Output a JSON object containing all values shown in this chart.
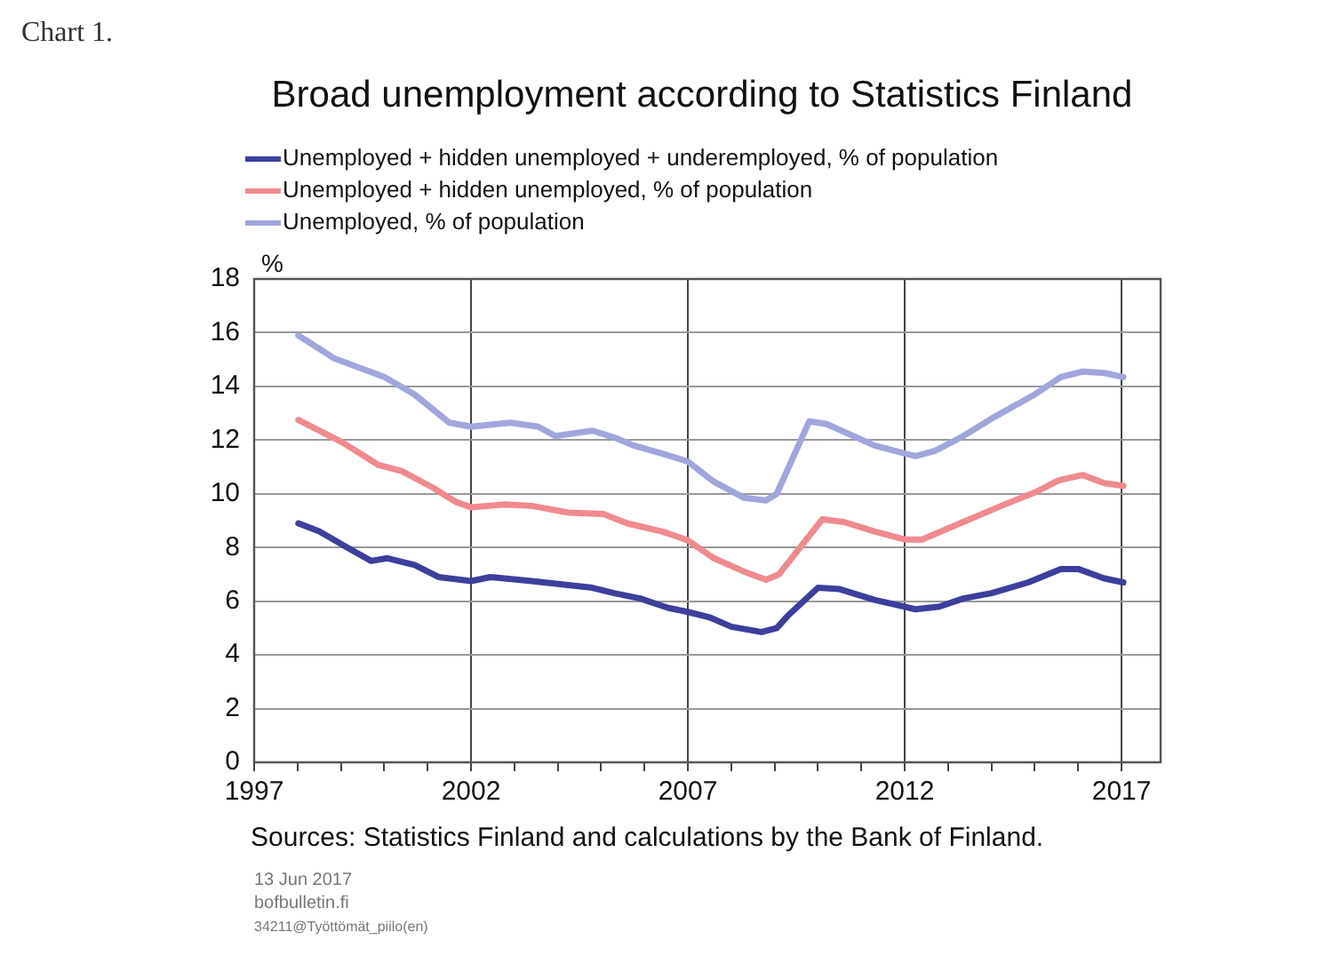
{
  "chart_data": {
    "type": "line",
    "title": "Broad unemployment according to Statistics Finland",
    "ylabel": "%",
    "annotations": [
      "Chart 1.",
      "Sources: Statistics Finland and calculations by the Bank of Finland.",
      "13 Jun 2017",
      "bofbulletin.fi",
      "34211@Työttömät_piilo(en)"
    ],
    "legend": "top left",
    "grid": true,
    "line_style": "solid",
    "marker": "none",
    "xlim": [
      1997,
      2017.9
    ],
    "xticks": [
      1997,
      {
        "value": 1998,
        "label": null
      },
      {
        "value": 1999,
        "label": null
      },
      {
        "value": 2000,
        "label": null
      },
      {
        "value": 2001,
        "label": null
      },
      2002,
      {
        "value": 2003,
        "label": null
      },
      {
        "value": 2004,
        "label": null
      },
      {
        "value": 2005,
        "label": null
      },
      {
        "value": 2006,
        "label": null
      },
      2007,
      {
        "value": 2008,
        "label": null
      },
      {
        "value": 2009,
        "label": null
      },
      {
        "value": 2010,
        "label": null
      },
      {
        "value": 2011,
        "label": null
      },
      2012,
      {
        "value": 2013,
        "label": null
      },
      {
        "value": 2014,
        "label": null
      },
      {
        "value": 2015,
        "label": null
      },
      {
        "value": 2016,
        "label": null
      },
      2017
    ],
    "ylim": [
      0,
      18
    ],
    "yticks": [
      0,
      2,
      4,
      6,
      8,
      10,
      12,
      14,
      16,
      18
    ],
    "series": [
      {
        "name": "Unemployed + hidden unemployed + underemployed, % of population",
        "color": "#3c3f9c",
        "x": [
          1998.02,
          1998.5,
          1999.2,
          1999.7,
          2000.07,
          2000.7,
          2001.25,
          2002.0,
          2002.45,
          2003.4,
          2004.8,
          2005.3,
          2005.9,
          2006.55,
          2007.0,
          2007.5,
          2008.0,
          2008.7,
          2009.05,
          2009.3,
          2010.0,
          2010.5,
          2011.3,
          2012.25,
          2012.8,
          2013.35,
          2014.0,
          2014.85,
          2015.6,
          2016.0,
          2016.6,
          2017.04
        ],
        "values": [
          8.9,
          8.6,
          7.95,
          7.5,
          7.6,
          7.35,
          6.9,
          6.75,
          6.9,
          6.75,
          6.5,
          6.3,
          6.1,
          5.75,
          5.6,
          5.4,
          5.05,
          4.85,
          5.0,
          5.45,
          6.5,
          6.45,
          6.05,
          5.7,
          5.8,
          6.1,
          6.3,
          6.7,
          7.2,
          7.2,
          6.85,
          6.7
        ]
      },
      {
        "name": "Unemployed + hidden unemployed, % of population",
        "color": "#f08a8f",
        "x": [
          1998.02,
          1999.05,
          1999.87,
          2000.4,
          2001.1,
          2001.65,
          2002.0,
          2002.75,
          2003.4,
          2004.25,
          2005.05,
          2005.6,
          2006.4,
          2007.0,
          2007.6,
          2008.3,
          2008.8,
          2009.1,
          2010.1,
          2010.6,
          2011.3,
          2012.0,
          2012.4,
          2013.35,
          2014.3,
          2015.0,
          2015.55,
          2016.1,
          2016.6,
          2017.04
        ],
        "values": [
          12.75,
          11.9,
          11.07,
          10.85,
          10.25,
          9.7,
          9.5,
          9.6,
          9.55,
          9.3,
          9.25,
          8.9,
          8.6,
          8.27,
          7.6,
          7.1,
          6.8,
          7.0,
          9.05,
          8.95,
          8.6,
          8.3,
          8.3,
          8.95,
          9.6,
          10.05,
          10.5,
          10.7,
          10.4,
          10.3
        ]
      },
      {
        "name": "Unemployed, % of population",
        "color": "#a0a6dc",
        "x": [
          1998.02,
          1998.84,
          2000.0,
          2000.7,
          2001.5,
          2002.0,
          2002.9,
          2003.55,
          2003.95,
          2004.8,
          2005.3,
          2005.75,
          2006.4,
          2007.0,
          2007.6,
          2008.3,
          2008.8,
          2009.05,
          2009.8,
          2010.2,
          2011.3,
          2012.25,
          2012.7,
          2013.35,
          2014.0,
          2015.0,
          2015.6,
          2016.1,
          2016.6,
          2017.04
        ],
        "values": [
          15.9,
          15.05,
          14.35,
          13.7,
          12.65,
          12.5,
          12.65,
          12.5,
          12.15,
          12.35,
          12.1,
          11.8,
          11.5,
          11.2,
          10.45,
          9.85,
          9.75,
          10.0,
          12.7,
          12.6,
          11.8,
          11.4,
          11.6,
          12.15,
          12.8,
          13.7,
          14.35,
          14.55,
          14.5,
          14.35
        ]
      }
    ]
  }
}
